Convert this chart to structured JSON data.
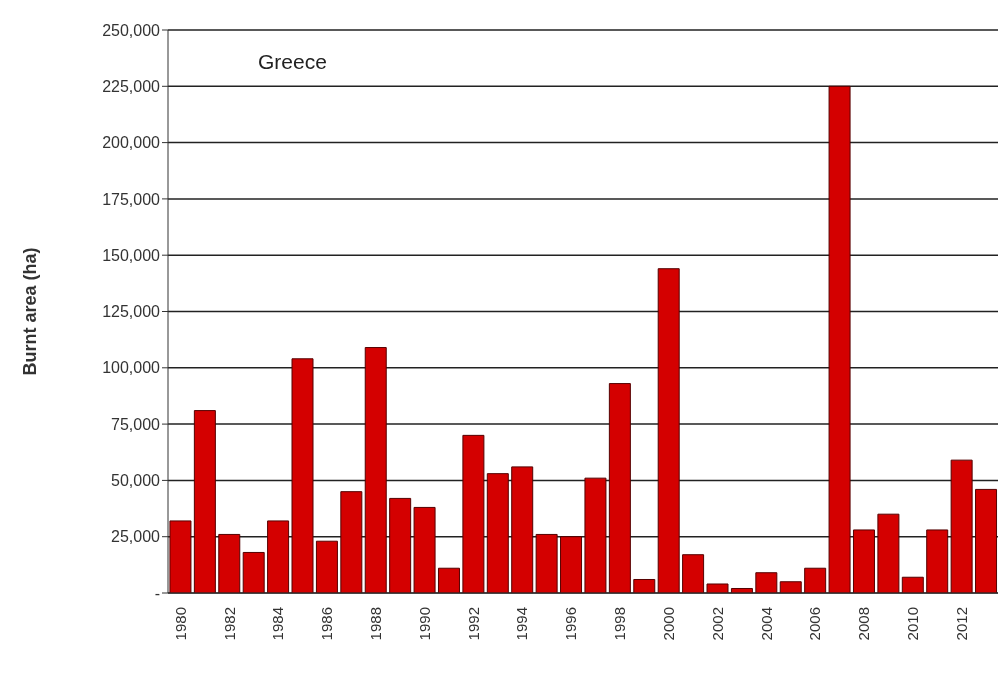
{
  "chart_data": {
    "type": "bar",
    "title": "Greece",
    "ylabel": "Burnt area (ha)",
    "categories": [
      "1980",
      null,
      "1982",
      null,
      "1984",
      null,
      "1986",
      null,
      "1988",
      null,
      "1990",
      null,
      "1992",
      null,
      "1994",
      null,
      "1996",
      null,
      "1998",
      null,
      "2000",
      null,
      "2002",
      null,
      "2004",
      null,
      "2006",
      null,
      "2008",
      null,
      "2010",
      null,
      "2012",
      null
    ],
    "values": [
      32000,
      81000,
      26000,
      18000,
      32000,
      104000,
      23000,
      45000,
      109000,
      42000,
      38000,
      11000,
      70000,
      53000,
      56000,
      26000,
      25000,
      51000,
      93000,
      6000,
      144000,
      17000,
      4000,
      2000,
      9000,
      5000,
      11000,
      225000,
      28000,
      35000,
      7000,
      28000,
      59000,
      46000
    ],
    "color": "#d40000",
    "ylim": [
      0,
      250000
    ],
    "yticks": [
      {
        "value": 0,
        "label": "-"
      },
      {
        "value": 25000,
        "label": "25,000"
      },
      {
        "value": 50000,
        "label": "50,000"
      },
      {
        "value": 75000,
        "label": "75,000"
      },
      {
        "value": 100000,
        "label": "100,000"
      },
      {
        "value": 125000,
        "label": "125,000"
      },
      {
        "value": 150000,
        "label": "150,000"
      },
      {
        "value": 175000,
        "label": "175,000"
      },
      {
        "value": 200000,
        "label": "200,000"
      },
      {
        "value": 225000,
        "label": "225,000"
      },
      {
        "value": 250000,
        "label": "250,000"
      }
    ],
    "grid": "y"
  }
}
